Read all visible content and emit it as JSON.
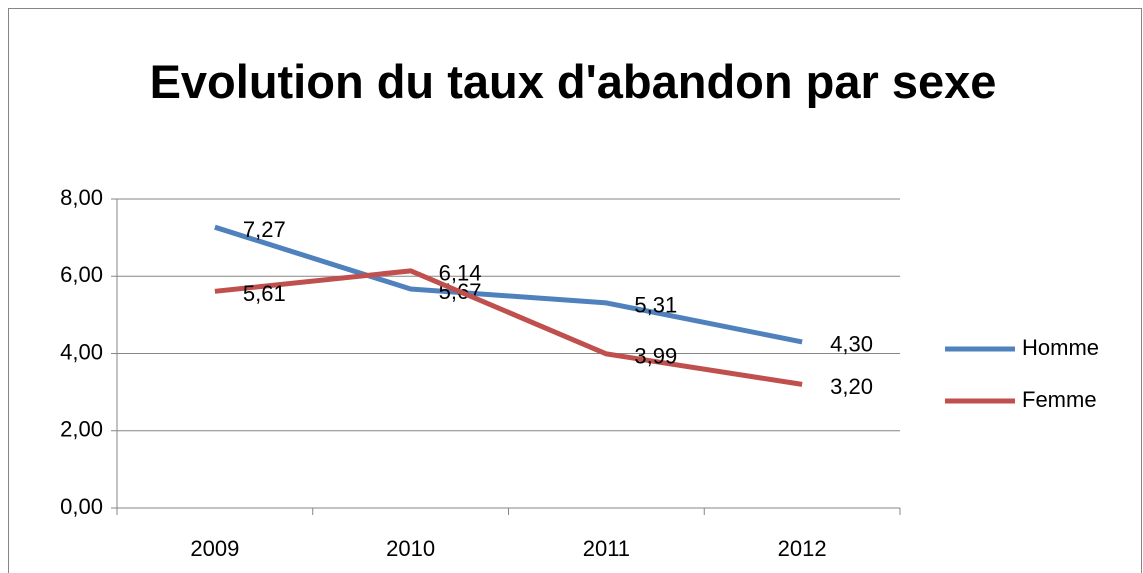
{
  "chart_data": {
    "type": "line",
    "title": "Evolution du taux d'abandon par sexe",
    "categories": [
      "2009",
      "2010",
      "2011",
      "2012"
    ],
    "series": [
      {
        "name": "Homme",
        "color": "#4f81bd",
        "values": [
          7.27,
          5.67,
          5.31,
          4.3
        ],
        "value_labels": [
          "7,27",
          "5,67",
          "5,31",
          "4,30"
        ]
      },
      {
        "name": "Femme",
        "color": "#c0504d",
        "values": [
          5.61,
          6.14,
          3.99,
          3.2
        ],
        "value_labels": [
          "5,61",
          "6,14",
          "3,99",
          "3,20"
        ]
      }
    ],
    "ylim": [
      0,
      8
    ],
    "yticks": [
      {
        "value": 0,
        "label": "0,00"
      },
      {
        "value": 2,
        "label": "2,00"
      },
      {
        "value": 4,
        "label": "4,00"
      },
      {
        "value": 6,
        "label": "6,00"
      },
      {
        "value": 8,
        "label": "8,00"
      }
    ],
    "grid": true,
    "legend": "right"
  }
}
